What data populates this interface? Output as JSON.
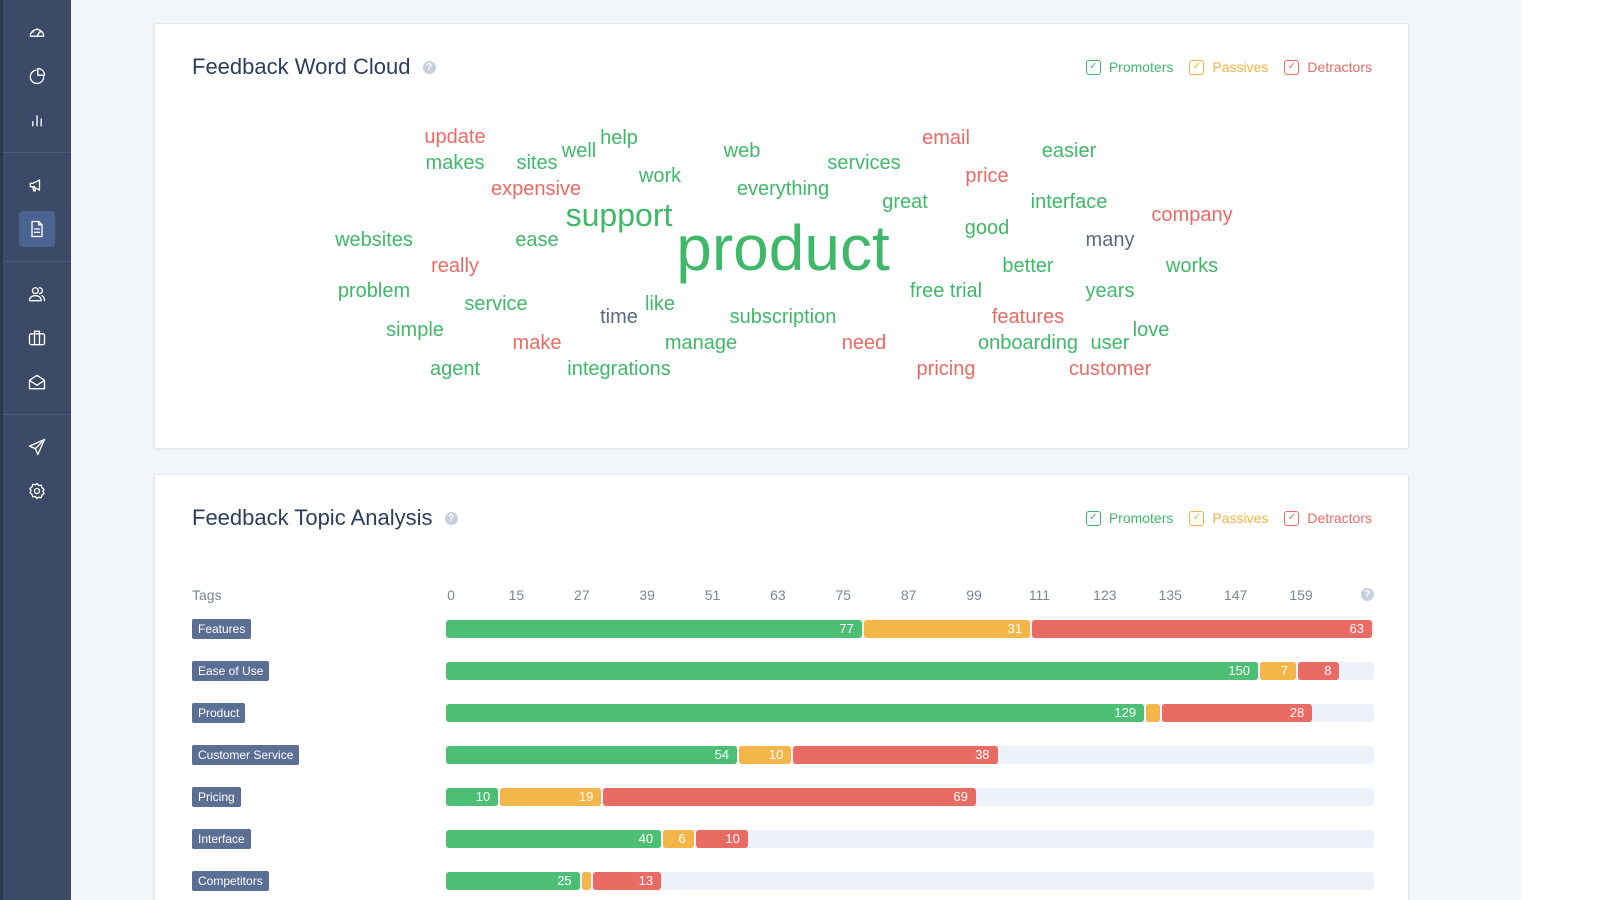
{
  "colors": {
    "promoter": "#4cbf74",
    "passive": "#f5b649",
    "detractor": "#ea6a64"
  },
  "sidebar": {
    "items": [
      {
        "icon": "dashboard-gauge-icon"
      },
      {
        "icon": "pie-chart-icon"
      },
      {
        "icon": "bar-chart-icon"
      },
      {
        "icon": "megaphone-icon"
      },
      {
        "icon": "document-icon",
        "active": true
      },
      {
        "icon": "users-icon"
      },
      {
        "icon": "briefcase-icon"
      },
      {
        "icon": "mail-icon"
      },
      {
        "icon": "send-icon"
      },
      {
        "icon": "settings-gear-icon"
      }
    ]
  },
  "word_cloud": {
    "title": "Feedback Word Cloud",
    "legend": {
      "promoters": "Promoters",
      "passives": "Passives",
      "detractors": "Detractors"
    },
    "words": [
      {
        "text": "update",
        "color": "r",
        "size": 20
      },
      {
        "text": "makes",
        "color": "g",
        "size": 20
      },
      {
        "text": "sites",
        "color": "g",
        "size": 20
      },
      {
        "text": "well",
        "color": "g",
        "size": 20
      },
      {
        "text": "help",
        "color": "g",
        "size": 20
      },
      {
        "text": "expensive",
        "color": "r",
        "size": 20
      },
      {
        "text": "work",
        "color": "g",
        "size": 20
      },
      {
        "text": "web",
        "color": "g",
        "size": 20
      },
      {
        "text": "services",
        "color": "g",
        "size": 20
      },
      {
        "text": "everything",
        "color": "g",
        "size": 20
      },
      {
        "text": "email",
        "color": "r",
        "size": 20
      },
      {
        "text": "price",
        "color": "r",
        "size": 20
      },
      {
        "text": "easier",
        "color": "g",
        "size": 20
      },
      {
        "text": "great",
        "color": "g",
        "size": 20
      },
      {
        "text": "interface",
        "color": "g",
        "size": 20
      },
      {
        "text": "support",
        "color": "g",
        "size": 32
      },
      {
        "text": "company",
        "color": "r",
        "size": 20
      },
      {
        "text": "websites",
        "color": "g",
        "size": 20
      },
      {
        "text": "ease",
        "color": "g",
        "size": 20
      },
      {
        "text": "product",
        "color": "g",
        "size": 64
      },
      {
        "text": "good",
        "color": "g",
        "size": 20
      },
      {
        "text": "many",
        "color": "b",
        "size": 20
      },
      {
        "text": "really",
        "color": "r",
        "size": 20
      },
      {
        "text": "better",
        "color": "g",
        "size": 20
      },
      {
        "text": "works",
        "color": "g",
        "size": 20
      },
      {
        "text": "problem",
        "color": "g",
        "size": 20
      },
      {
        "text": "free trial",
        "color": "g",
        "size": 20
      },
      {
        "text": "years",
        "color": "g",
        "size": 20
      },
      {
        "text": "service",
        "color": "g",
        "size": 20
      },
      {
        "text": "like",
        "color": "g",
        "size": 20
      },
      {
        "text": "time",
        "color": "b",
        "size": 20
      },
      {
        "text": "subscription",
        "color": "g",
        "size": 20
      },
      {
        "text": "features",
        "color": "r",
        "size": 20
      },
      {
        "text": "simple",
        "color": "g",
        "size": 20
      },
      {
        "text": "love",
        "color": "g",
        "size": 20
      },
      {
        "text": "make",
        "color": "r",
        "size": 20
      },
      {
        "text": "manage",
        "color": "g",
        "size": 20
      },
      {
        "text": "need",
        "color": "r",
        "size": 20
      },
      {
        "text": "onboarding",
        "color": "g",
        "size": 20
      },
      {
        "text": "user",
        "color": "g",
        "size": 20
      },
      {
        "text": "agent",
        "color": "g",
        "size": 20
      },
      {
        "text": "integrations",
        "color": "g",
        "size": 20
      },
      {
        "text": "pricing",
        "color": "r",
        "size": 20
      },
      {
        "text": "customer",
        "color": "r",
        "size": 20
      }
    ]
  },
  "topic_analysis": {
    "title": "Feedback Topic Analysis",
    "legend": {
      "promoters": "Promoters",
      "passives": "Passives",
      "detractors": "Detractors"
    },
    "tags_label": "Tags",
    "ticks": [
      "0",
      "15",
      "27",
      "39",
      "51",
      "63",
      "75",
      "87",
      "99",
      "111",
      "123",
      "135",
      "147",
      "159"
    ],
    "max": 171,
    "rows": [
      {
        "tag": "Features",
        "promoters": 77,
        "passives": 31,
        "detractors": 63,
        "promoters_label": "77",
        "passives_label": "31",
        "detractors_label": "63"
      },
      {
        "tag": "Ease of Use",
        "promoters": 150,
        "passives": 7,
        "detractors": 8,
        "promoters_label": "150",
        "passives_label": "7",
        "detractors_label": "8"
      },
      {
        "tag": "Product",
        "promoters": 129,
        "passives": 3,
        "detractors": 28,
        "promoters_label": "129",
        "passives_label": "",
        "detractors_label": "28"
      },
      {
        "tag": "Customer Service",
        "promoters": 54,
        "passives": 10,
        "detractors": 38,
        "promoters_label": "54",
        "passives_label": "10",
        "detractors_label": "38"
      },
      {
        "tag": "Pricing",
        "promoters": 10,
        "passives": 19,
        "detractors": 69,
        "promoters_label": "10",
        "passives_label": "19",
        "detractors_label": "69"
      },
      {
        "tag": "Interface",
        "promoters": 40,
        "passives": 6,
        "detractors": 10,
        "promoters_label": "40",
        "passives_label": "6",
        "detractors_label": "10"
      },
      {
        "tag": "Competitors",
        "promoters": 25,
        "passives": 2,
        "detractors": 13,
        "promoters_label": "25",
        "passives_label": "",
        "detractors_label": "13"
      }
    ]
  }
}
